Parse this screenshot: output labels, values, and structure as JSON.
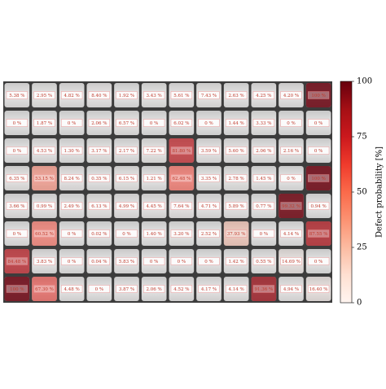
{
  "chart_data": {
    "type": "heatmap",
    "colorbar_label": "Defect probability [%]",
    "clim": [
      0,
      100
    ],
    "cticks": [
      0,
      25,
      50,
      75,
      100
    ],
    "values": [
      [
        5.38,
        2.95,
        4.82,
        8.4,
        1.92,
        3.43,
        5.61,
        7.43,
        2.63,
        4.25,
        4.2,
        100
      ],
      [
        0,
        1.87,
        0,
        2.06,
        6.57,
        0,
        6.02,
        0,
        1.44,
        3.33,
        0,
        0
      ],
      [
        0,
        4.53,
        1.3,
        3.17,
        2.17,
        7.22,
        81.8,
        3.59,
        5.6,
        2.06,
        2.16,
        0
      ],
      [
        6.35,
        53.15,
        8.24,
        0.35,
        6.15,
        1.21,
        62.48,
        3.35,
        2.78,
        1.45,
        0,
        100
      ],
      [
        3.66,
        0.99,
        2.49,
        6.13,
        4.99,
        4.45,
        7.64,
        4.71,
        5.89,
        0.77,
        99.32,
        0.94
      ],
      [
        0,
        60.52,
        0,
        0.02,
        0,
        1.4,
        3.2,
        2.52,
        37.93,
        0,
        4.14,
        87.55
      ],
      [
        84.48,
        3.83,
        0,
        0.04,
        5.83,
        0,
        0,
        0,
        1.42,
        0.55,
        14.69,
        0
      ],
      [
        100,
        67.3,
        4.48,
        0,
        3.87,
        2.06,
        4.52,
        4.17,
        4.14,
        91.36,
        4.94,
        16.4
      ]
    ],
    "value_labels": [
      [
        "5.38 %",
        "2.95 %",
        "4.82 %",
        "8.40 %",
        "1.92 %",
        "3.43 %",
        "5.61 %",
        "7.43 %",
        "2.63 %",
        "4.25 %",
        "4.20 %",
        "100 %"
      ],
      [
        "0 %",
        "1.87 %",
        "0 %",
        "2.06 %",
        "6.57 %",
        "0 %",
        "6.02 %",
        "0 %",
        "1.44 %",
        "3.33 %",
        "0 %",
        "0 %"
      ],
      [
        "0 %",
        "4.53 %",
        "1.30 %",
        "3.17 %",
        "2.17 %",
        "7.22 %",
        "81.80 %",
        "3.59 %",
        "5.60 %",
        "2.06 %",
        "2.16 %",
        "0 %"
      ],
      [
        "6.35 %",
        "53.15 %",
        "8.24 %",
        "0.35 %",
        "6.15 %",
        "1.21 %",
        "62.48 %",
        "3.35 %",
        "2.78 %",
        "1.45 %",
        "0 %",
        "100 %"
      ],
      [
        "3.66 %",
        "0.99 %",
        "2.49 %",
        "6.13 %",
        "4.99 %",
        "4.45 %",
        "7.64 %",
        "4.71 %",
        "5.89 %",
        "0.77 %",
        "99.32 %",
        "0.94 %"
      ],
      [
        "0 %",
        "60.52 %",
        "0 %",
        "0.02 %",
        "0 %",
        "1.40 %",
        "3.20 %",
        "2.52 %",
        "37.93 %",
        "0 %",
        "4.14 %",
        "87.55 %"
      ],
      [
        "84.48 %",
        "3.83 %",
        "0 %",
        "0.04 %",
        "5.83 %",
        "0 %",
        "0 %",
        "0 %",
        "1.42 %",
        "0.55 %",
        "14.69 %",
        "0 %"
      ],
      [
        "100 %",
        "67.30 %",
        "4.48 %",
        "0 %",
        "3.87 %",
        "2.06 %",
        "4.52 %",
        "4.17 %",
        "4.14 %",
        "91.36 %",
        "4.94 %",
        "16.40 %"
      ]
    ]
  }
}
